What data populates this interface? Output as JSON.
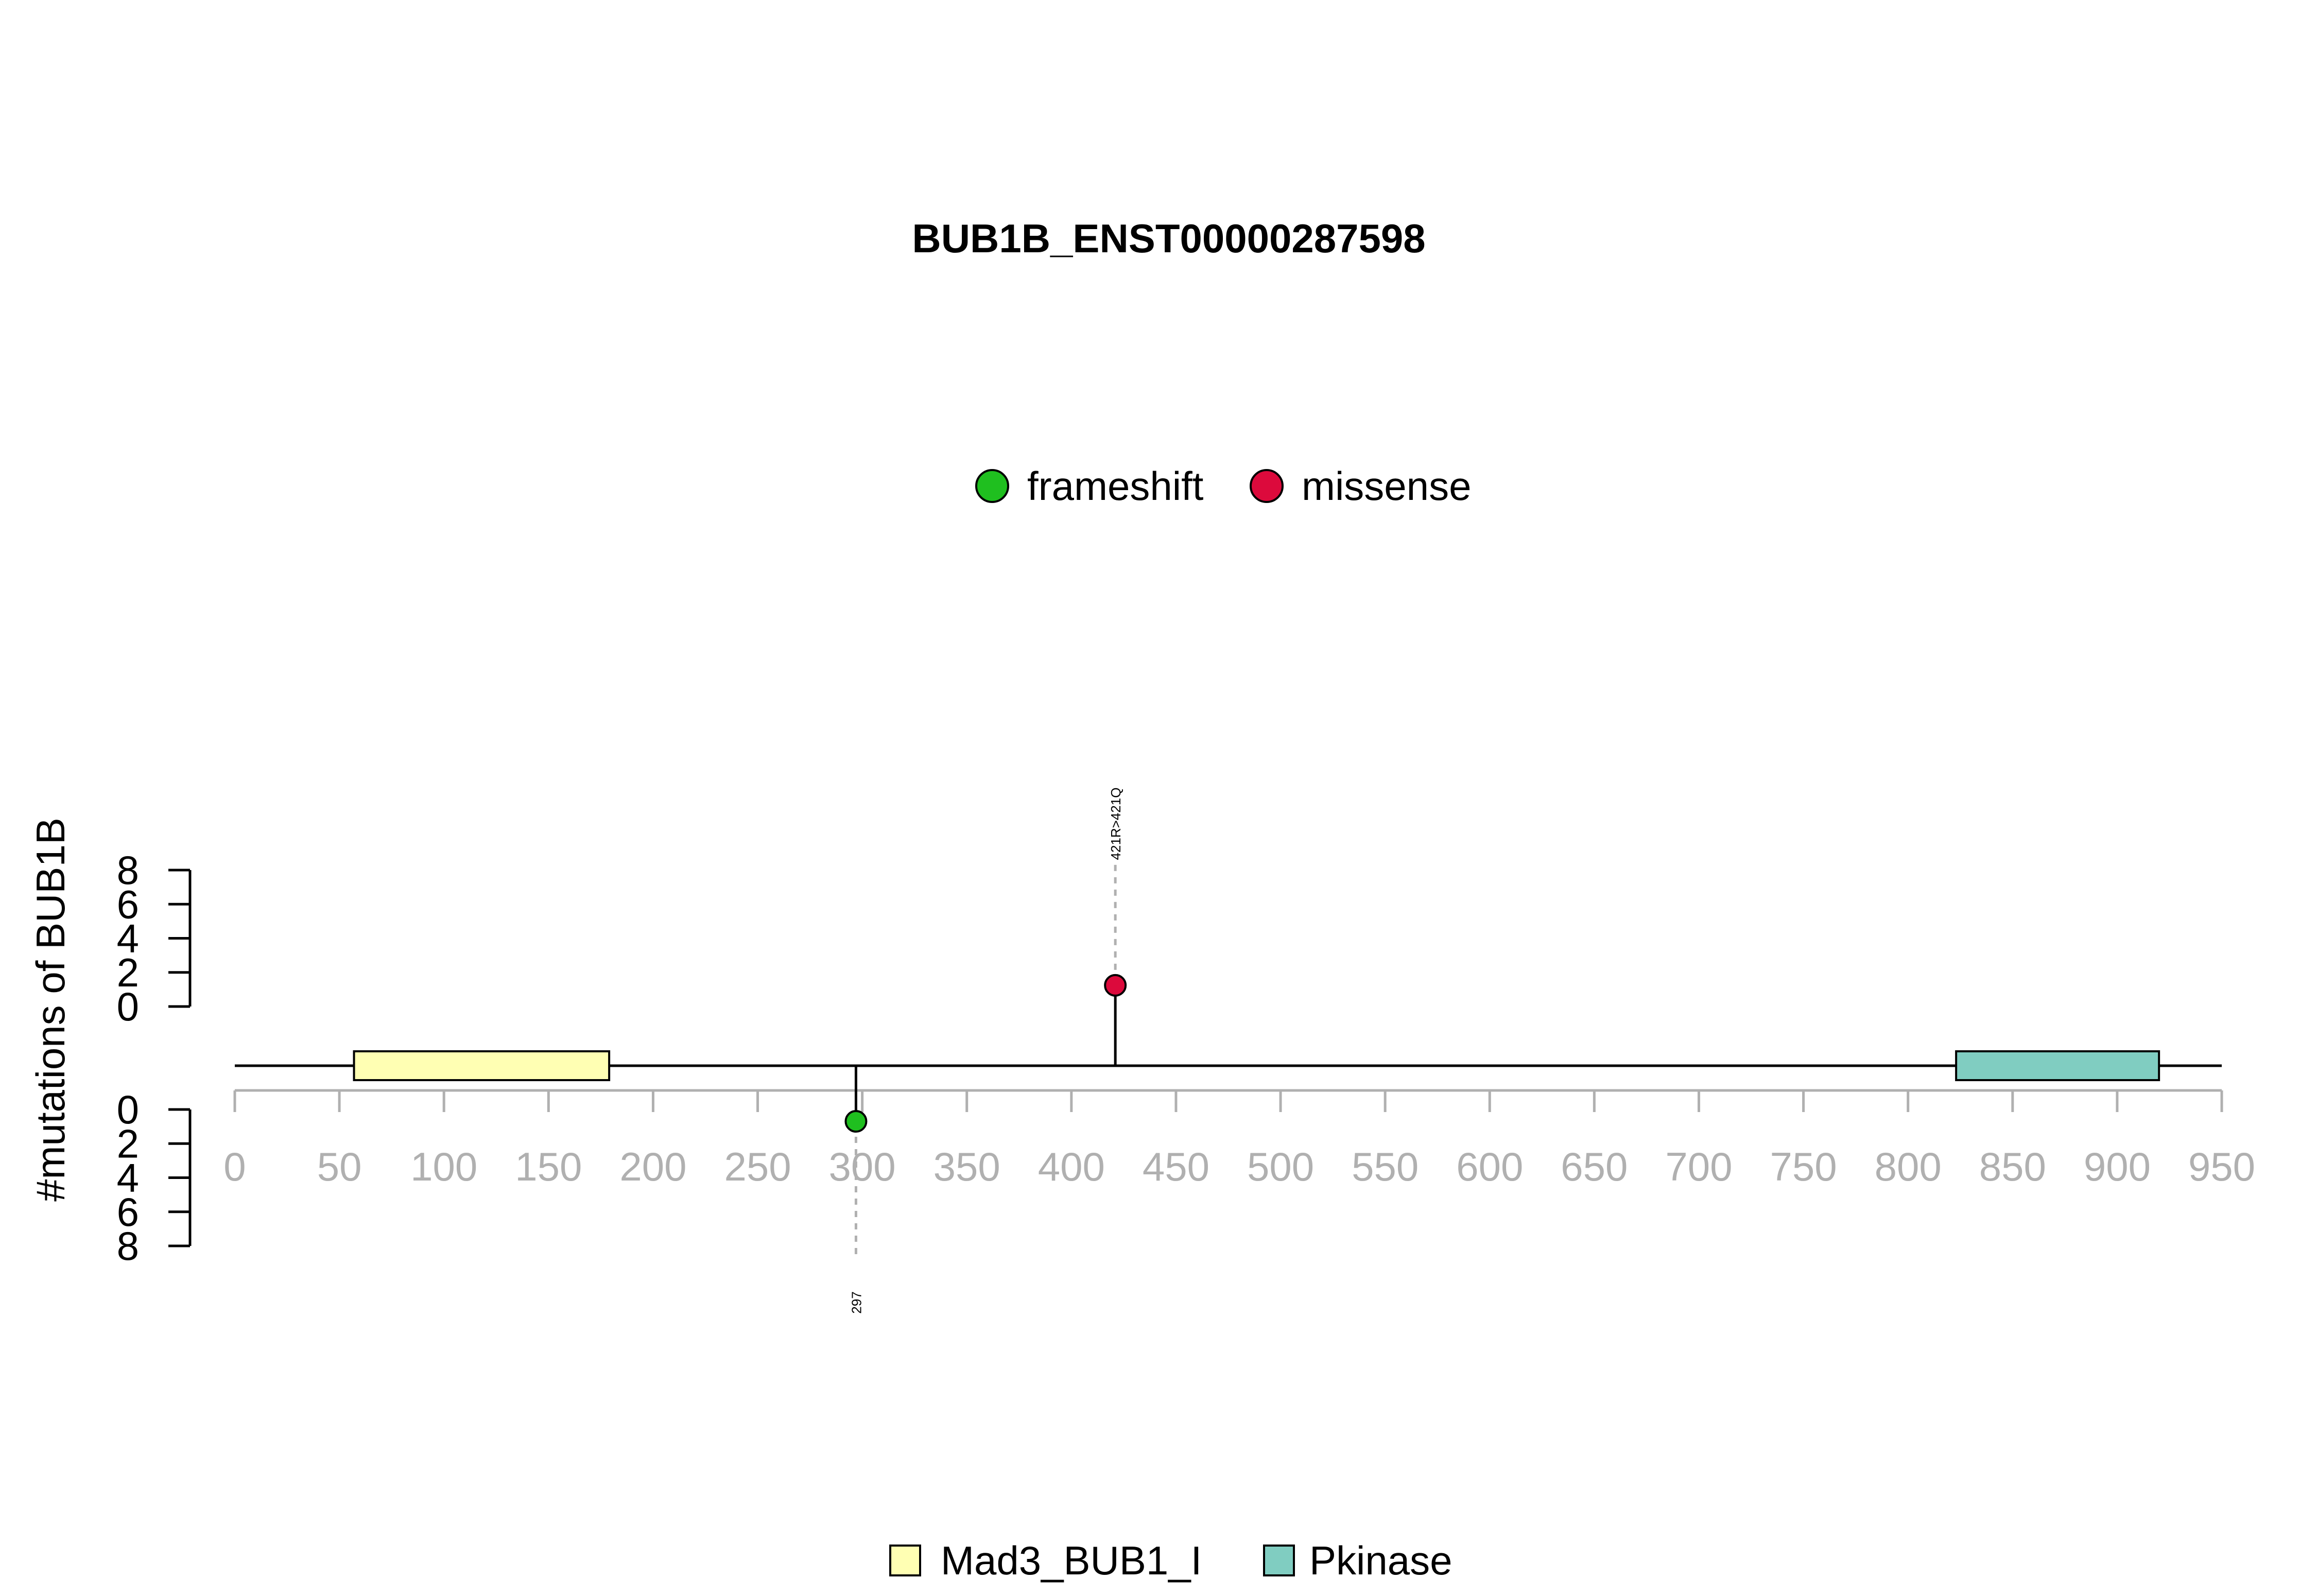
{
  "chart_data": {
    "type": "lollipop",
    "title": "BUB1B_ENST00000287598",
    "ylabel": "#mutations of BUB1B",
    "ylim": [
      0,
      8
    ],
    "y_ticks": [
      "0",
      "2",
      "4",
      "6",
      "8"
    ],
    "xlim": [
      0,
      950
    ],
    "x_ticks": [
      "0",
      "50",
      "100",
      "150",
      "200",
      "250",
      "300",
      "350",
      "400",
      "450",
      "500",
      "550",
      "600",
      "650",
      "700",
      "750",
      "800",
      "850",
      "900",
      "950"
    ],
    "legend_mutations": [
      {
        "label": "frameshift",
        "color": "#1fbf1f"
      },
      {
        "label": "missense",
        "color": "#dc0a3c"
      }
    ],
    "legend_domains": [
      {
        "label": "Mad3_BUB1_I",
        "color": "#ffffb3"
      },
      {
        "label": "Pkinase",
        "color": "#80cdc1"
      }
    ],
    "domains": [
      {
        "name": "Mad3_BUB1_I",
        "start": 57,
        "end": 179,
        "color": "#ffffb3"
      },
      {
        "name": "Pkinase",
        "start": 823,
        "end": 920,
        "color": "#80cdc1"
      }
    ],
    "mutations": [
      {
        "position": 421,
        "count": 1,
        "type": "missense",
        "side": "top",
        "label": "421R>421Q",
        "color": "#dc0a3c"
      },
      {
        "position": 297,
        "count": 1,
        "type": "frameshift",
        "side": "bottom",
        "label": "297",
        "color": "#1fbf1f"
      }
    ]
  }
}
